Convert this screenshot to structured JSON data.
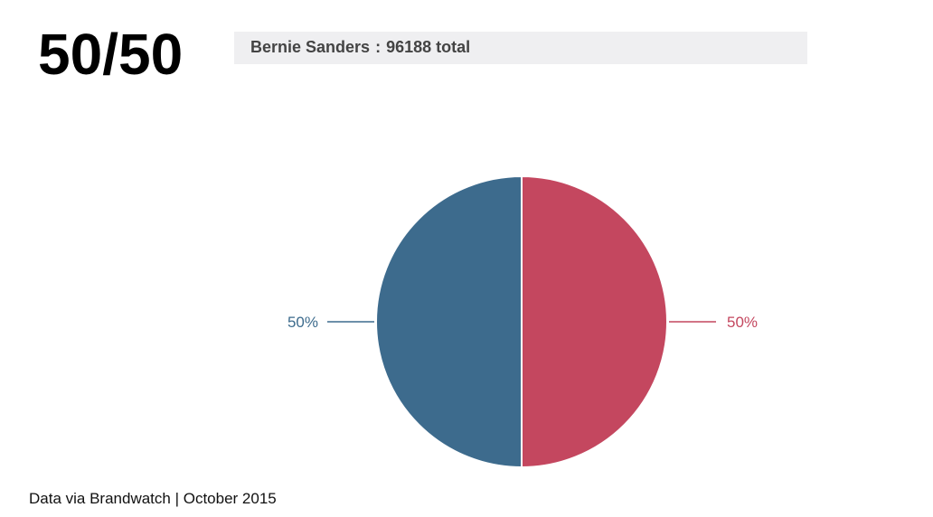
{
  "header": {
    "headline": "50/50",
    "selector": {
      "name": "Bernie Sanders",
      "separator": ":",
      "total_text": "96188 total"
    }
  },
  "chart_data": {
    "type": "pie",
    "slices": [
      {
        "label": "50%",
        "value": 50,
        "color": "#c4475f"
      },
      {
        "label": "50%",
        "value": 50,
        "color": "#3d6b8d"
      }
    ]
  },
  "footer": {
    "source": "Data via Brandwatch | October 2015"
  }
}
